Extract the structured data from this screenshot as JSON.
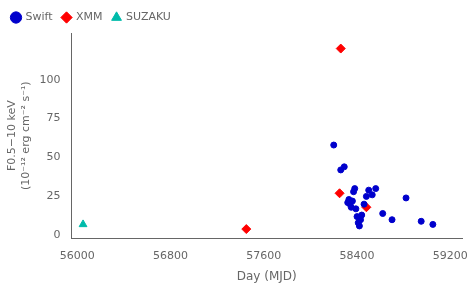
{
  "chart_data": {
    "type": "scatter",
    "xlabel": "Day (MJD)",
    "ylabel": [
      "F0.5−10 keV",
      "(10⁻¹² erg cm⁻² s⁻¹)"
    ],
    "series": [
      {
        "name": "Swift",
        "color": "#0000cc",
        "marker": "circle",
        "x": [
          58200,
          58260,
          58290,
          58320,
          58330,
          58340,
          58350,
          58360,
          58370,
          58380,
          58390,
          58400,
          58410,
          58420,
          58430,
          58440,
          58460,
          58480,
          58500,
          58530,
          58560,
          58620,
          58700,
          58820,
          58950,
          59050
        ],
        "values": [
          58,
          42,
          44,
          21,
          23,
          20,
          18,
          22,
          28,
          30,
          17,
          12,
          8,
          6,
          10,
          13,
          20,
          25,
          29,
          26,
          30,
          14,
          10,
          24,
          9,
          7
        ]
      },
      {
        "name": "XMM",
        "color": "#ff0000",
        "marker": "diamond",
        "x": [
          57450,
          58250,
          58480,
          58260
        ],
        "values": [
          4,
          27,
          18,
          120
        ]
      },
      {
        "name": "SUZAKU",
        "color": "#00bbaa",
        "marker": "triangle",
        "x": [
          56050
        ],
        "values": [
          7
        ]
      }
    ],
    "xlim": [
      55950,
      59300
    ],
    "ylim": [
      -2,
      130
    ],
    "xticks": [
      56000,
      56800,
      57600,
      58400,
      59200
    ],
    "yticks": [
      0,
      25,
      50,
      75,
      100
    ],
    "grid": false,
    "legend": "upper left"
  }
}
